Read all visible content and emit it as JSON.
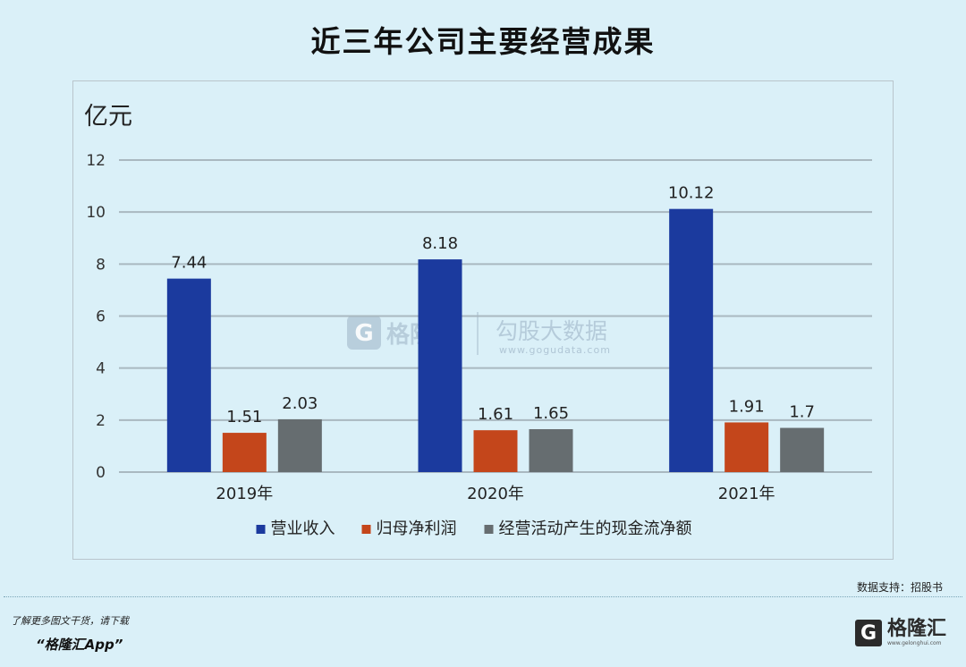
{
  "header": {
    "title": "近三年公司主要经营成果"
  },
  "chart_data": {
    "type": "bar",
    "title": "近三年公司主要经营成果",
    "unit_label": "亿元",
    "categories": [
      "2019年",
      "2020年",
      "2021年"
    ],
    "ylim": [
      0,
      12
    ],
    "yticks": [
      "0",
      "2",
      "4",
      "6",
      "8",
      "10",
      "12"
    ],
    "grid": true,
    "legend_position": "bottom",
    "series": [
      {
        "name": "营业收入",
        "values": [
          7.44,
          8.18,
          10.12
        ],
        "labels": [
          "7.44",
          "8.18",
          "10.12"
        ],
        "color": "#1b3a9e"
      },
      {
        "name": "归母净利润",
        "values": [
          1.51,
          1.61,
          1.91
        ],
        "labels": [
          "1.51",
          "1.61",
          "1.91"
        ],
        "color": "#c4461b"
      },
      {
        "name": "经营活动产生的现金流净额",
        "values": [
          2.03,
          1.65,
          1.7
        ],
        "labels": [
          "2.03",
          "1.65",
          "1.7"
        ],
        "color": "#666d70"
      }
    ]
  },
  "watermark": {
    "text": "勾股大数据",
    "url": "www.gogudata.com",
    "logo": "格隆"
  },
  "footer": {
    "source": "数据支持：招股书",
    "promo": "了解更多图文干货，请下载",
    "app": "“格隆汇App”",
    "brand_name": "格隆汇",
    "brand_url": "www.gelonghui.com"
  },
  "colors": {
    "background": "#daf0f8",
    "grid": "#a9b8c0"
  }
}
